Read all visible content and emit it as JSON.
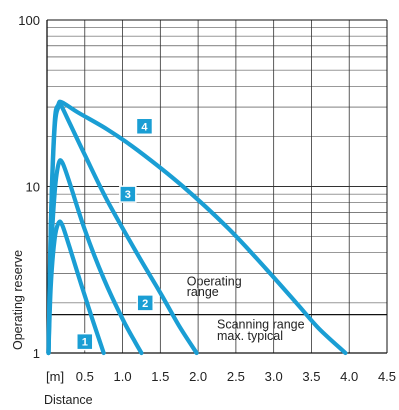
{
  "chart_data": {
    "type": "line",
    "xlabel": "Distance",
    "ylabel": "Operating reserve",
    "x_unit_label": "[m]",
    "xlim": [
      0,
      4.5
    ],
    "ylim": [
      1,
      100
    ],
    "y_scale": "log",
    "grid": true,
    "x_ticks": [
      0.5,
      1.0,
      1.5,
      2.0,
      2.5,
      3.0,
      3.5,
      4.0,
      4.5
    ],
    "x_tick_labels": [
      "0.5",
      "1.0",
      "1.5",
      "2.0",
      "2.5",
      "3.0",
      "3.5",
      "4.0",
      "4.5"
    ],
    "y_ticks": [
      1,
      10,
      100
    ],
    "y_tick_labels": [
      "1",
      "10",
      "100"
    ],
    "operating_range_threshold": 1.7,
    "annotations": [
      {
        "text": "Operating",
        "x": 1.85,
        "y": 2.55
      },
      {
        "text": "range",
        "x": 1.85,
        "y": 2.2
      },
      {
        "text": "Scanning range",
        "x": 2.25,
        "y": 1.4
      },
      {
        "text": "max. typical",
        "x": 2.25,
        "y": 1.2
      }
    ],
    "series": [
      {
        "label": "1",
        "color": "#1a9ed4",
        "badge": {
          "x": 0.5,
          "y": 1.17
        },
        "points": [
          [
            0.02,
            1
          ],
          [
            0.05,
            2.5
          ],
          [
            0.1,
            4.8
          ],
          [
            0.15,
            6.0
          ],
          [
            0.2,
            5.9
          ],
          [
            0.3,
            4.3
          ],
          [
            0.45,
            2.6
          ],
          [
            0.6,
            1.6
          ],
          [
            0.75,
            1
          ]
        ]
      },
      {
        "label": "2",
        "color": "#1a9ed4",
        "badge": {
          "x": 1.3,
          "y": 2.0
        },
        "points": [
          [
            0.02,
            1
          ],
          [
            0.05,
            3.5
          ],
          [
            0.1,
            9.0
          ],
          [
            0.15,
            13.5
          ],
          [
            0.2,
            14.0
          ],
          [
            0.3,
            10.5
          ],
          [
            0.5,
            5.5
          ],
          [
            0.75,
            2.8
          ],
          [
            1.0,
            1.6
          ],
          [
            1.15,
            1.2
          ],
          [
            1.25,
            1
          ]
        ]
      },
      {
        "label": "3",
        "color": "#1a9ed4",
        "badge": {
          "x": 1.07,
          "y": 9.0
        },
        "points": [
          [
            0.02,
            1
          ],
          [
            0.05,
            5.5
          ],
          [
            0.1,
            22
          ],
          [
            0.15,
            30
          ],
          [
            0.18,
            31
          ],
          [
            0.3,
            24
          ],
          [
            0.5,
            15.5
          ],
          [
            0.8,
            8.2
          ],
          [
            1.2,
            3.9
          ],
          [
            1.5,
            2.3
          ],
          [
            1.75,
            1.45
          ],
          [
            1.98,
            1
          ]
        ]
      },
      {
        "label": "4",
        "color": "#1a9ed4",
        "badge": {
          "x": 1.29,
          "y": 23.0
        },
        "points": [
          [
            0.02,
            1
          ],
          [
            0.05,
            6
          ],
          [
            0.1,
            24
          ],
          [
            0.15,
            31
          ],
          [
            0.2,
            32
          ],
          [
            0.4,
            28
          ],
          [
            0.8,
            22
          ],
          [
            1.2,
            16.5
          ],
          [
            1.8,
            10
          ],
          [
            2.4,
            5.6
          ],
          [
            2.9,
            3.2
          ],
          [
            3.3,
            2.0
          ],
          [
            3.6,
            1.4
          ],
          [
            3.95,
            1
          ]
        ]
      }
    ]
  }
}
